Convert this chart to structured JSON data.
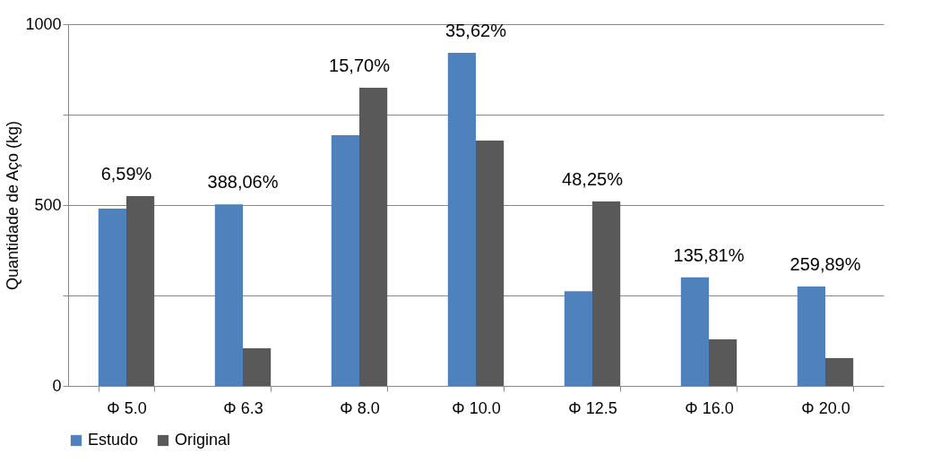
{
  "chart_data": {
    "type": "bar",
    "ylabel": "Quantidade de Aço (kg)",
    "categories": [
      "Φ 5.0",
      "Φ 6.3",
      "Φ 8.0",
      "Φ 10.0",
      "Φ 12.5",
      "Φ 16.0",
      "Φ 20.0"
    ],
    "series": [
      {
        "name": "Estudo",
        "color": "#4f81bd",
        "values": [
          490,
          502,
          693,
          921,
          262,
          300,
          275
        ]
      },
      {
        "name": "Original",
        "color": "#595959",
        "values": [
          525,
          104,
          824,
          678,
          510,
          129,
          77
        ]
      }
    ],
    "ylim": [
      0,
      1000
    ],
    "yticks": [
      0,
      {
        "value": 250,
        "label": null
      },
      500,
      {
        "value": 750,
        "label": null
      },
      1000
    ],
    "grid": "y",
    "legend": "bottom",
    "annotations": [
      "6,59%",
      "388,06%",
      "15,70%",
      "35,62%",
      "48,25%",
      "135,81%",
      "259,89%"
    ]
  }
}
